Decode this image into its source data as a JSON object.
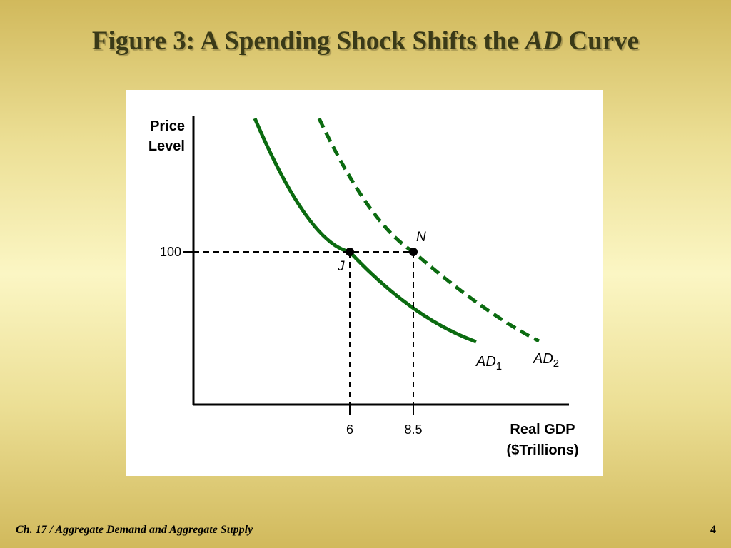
{
  "slide": {
    "title_prefix": "Figure 3: A Spending Shock Shifts the ",
    "title_italic": "AD",
    "title_suffix": " Curve",
    "footer": "Ch. 17 / Aggregate Demand and Aggregate Supply",
    "page_number": "4"
  },
  "chart_data": {
    "type": "line",
    "title": "Figure 3: A Spending Shock Shifts the AD Curve",
    "xlabel": [
      "Real GDP",
      "($Trillions)"
    ],
    "ylabel": [
      "Price",
      "Level"
    ],
    "x_ticks": [
      {
        "value": 6,
        "label": "6"
      },
      {
        "value": 8.5,
        "label": "8.5"
      }
    ],
    "y_ticks": [
      {
        "value": 100,
        "label": "100"
      }
    ],
    "series": [
      {
        "name": "AD",
        "subscript": "1",
        "style": "solid",
        "color": "#0b6b10"
      },
      {
        "name": "AD",
        "subscript": "2",
        "style": "dashed",
        "color": "#0b6b10"
      }
    ],
    "points": [
      {
        "label": "J",
        "x": 6,
        "y": 100,
        "series": "AD1"
      },
      {
        "label": "N",
        "x": 8.5,
        "y": 100,
        "series": "AD2"
      }
    ],
    "grid": false,
    "legend": "none"
  }
}
